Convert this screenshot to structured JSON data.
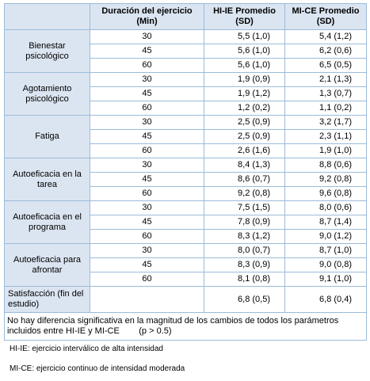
{
  "table": {
    "header": [
      "",
      "Duración del ejercicio (Min)",
      "HI-IE Promedio (SD)",
      "MI-CE Promedio (SD)"
    ],
    "groups": [
      {
        "label": "Bienestar psicológico",
        "rows": [
          [
            "30",
            "5,5 (1,0)",
            "5,4 (1,2)"
          ],
          [
            "45",
            "5,6 (1,0)",
            "6,2 (0,6)"
          ],
          [
            "60",
            "5,6 (1,0)",
            "6,5 (0,5)"
          ]
        ]
      },
      {
        "label": "Agotamiento psicológico",
        "rows": [
          [
            "30",
            "1,9 (0,9)",
            "2,1 (1,3)"
          ],
          [
            "45",
            "1,9 (1,2)",
            "1,3 (0,7)"
          ],
          [
            "60",
            "1,2 (0,2)",
            "1,1 (0,2)"
          ]
        ]
      },
      {
        "label": "Fatiga",
        "rows": [
          [
            "30",
            "2,5 (0,9)",
            "3,2 (1,7)"
          ],
          [
            "45",
            "2,5 (0,9)",
            "2,3 (1,1)"
          ],
          [
            "60",
            "2,6 (1,6)",
            "1,9 (1,0)"
          ]
        ]
      },
      {
        "label": "Autoeficacia en la tarea",
        "rows": [
          [
            "30",
            "8,4 (1,3)",
            "8,8 (0,6)"
          ],
          [
            "45",
            "8,6 (0,7)",
            "9,2 (0,8)"
          ],
          [
            "60",
            "9,2 (0,8)",
            "9,6 (0,8)"
          ]
        ]
      },
      {
        "label": "Autoeficacia en el programa",
        "rows": [
          [
            "30",
            "7,5 (1,5)",
            "8,0 (0,6)"
          ],
          [
            "45",
            "7,8 (0,9)",
            "8,7 (1,4)"
          ],
          [
            "60",
            "8,3 (1,2)",
            "9,0 (1,2)"
          ]
        ]
      },
      {
        "label": "Autoeficacia para afrontar",
        "rows": [
          [
            "30",
            "8,0 (0,7)",
            "8,7 (1,0)"
          ],
          [
            "45",
            "8,3 (0,9)",
            "9,0 (0,8)"
          ],
          [
            "60",
            "8,1 (0,8)",
            "9,1 (1,0)"
          ]
        ]
      }
    ],
    "satisfaction": {
      "label": "Satisfacción (fin del estudio)",
      "hiie": "6,8 (0,5)",
      "mice": "6,8 (0,4)"
    },
    "note": "No hay diferencia significativa en la magnitud de los cambios de todos los parámetros incluidos entre HI-IE y MI-CE        (p > 0.5)"
  },
  "footnotes": [
    "HI-IE: ejercicio interválico de alta intensidad",
    "MI-CE: ejercicio continuo de intensidad moderada"
  ]
}
